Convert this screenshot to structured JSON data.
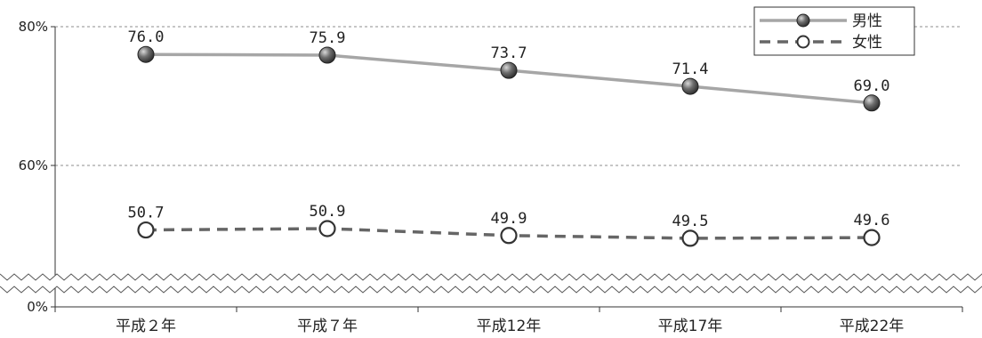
{
  "chart_data": {
    "type": "line",
    "categories": [
      "平成２年",
      "平成７年",
      "平成12年",
      "平成17年",
      "平成22年"
    ],
    "series": [
      {
        "name": "男性",
        "values": [
          76.0,
          75.9,
          73.7,
          71.4,
          69.0
        ],
        "labels": [
          "76.0",
          "75.9",
          "73.7",
          "71.4",
          "69.0"
        ],
        "line_color": "#a6a6a6",
        "line_style": "solid",
        "marker": "dark-sphere"
      },
      {
        "name": "女性",
        "values": [
          50.7,
          50.9,
          49.9,
          49.5,
          49.6
        ],
        "labels": [
          "50.7",
          "50.9",
          "49.9",
          "49.5",
          "49.6"
        ],
        "line_color": "#666666",
        "line_style": "dashed",
        "marker": "white-circle"
      }
    ],
    "y_ticks": [
      {
        "label": "80%",
        "value": 80
      },
      {
        "label": "60%",
        "value": 60
      },
      {
        "label": "0%",
        "value": 0
      }
    ],
    "ylim": [
      0,
      80
    ],
    "y_axis_break": true,
    "grid": "dashed horizontal at 60% and 80%",
    "legend_position": "top-right"
  }
}
